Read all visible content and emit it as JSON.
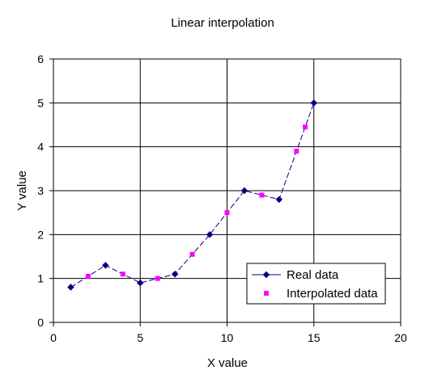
{
  "chart_data": {
    "type": "scatter",
    "title": "Linear interpolation",
    "xlabel": "X value",
    "ylabel": "Y value",
    "xlim": [
      0,
      20
    ],
    "ylim": [
      0,
      6
    ],
    "xticks": [
      "0",
      "5",
      "10",
      "15",
      "20"
    ],
    "yticks": [
      "0",
      "1",
      "2",
      "3",
      "4",
      "5",
      "6"
    ],
    "grid": true,
    "legend_position": "bottom-right",
    "series": [
      {
        "name": "Real data",
        "style": "line-diamond-dashed",
        "color": "#000080",
        "x": [
          1,
          3,
          5,
          7,
          9,
          11,
          13,
          15
        ],
        "y": [
          0.8,
          1.3,
          0.9,
          1.1,
          2.0,
          3.0,
          2.8,
          5.0
        ]
      },
      {
        "name": "Interpolated data",
        "style": "square-markers",
        "color": "#ff00ff",
        "x": [
          2,
          4,
          6,
          8,
          10,
          12,
          14,
          14.5
        ],
        "y": [
          1.05,
          1.1,
          1.0,
          1.55,
          2.5,
          2.9,
          3.9,
          4.45
        ]
      }
    ]
  }
}
